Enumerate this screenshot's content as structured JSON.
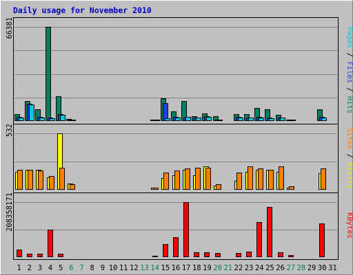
{
  "chart_data": [
    {
      "title": "Daily usage for November 2010",
      "type": "bar",
      "categories": [
        "1",
        "2",
        "3",
        "4",
        "5",
        "6",
        "7",
        "8",
        "9",
        "10",
        "11",
        "12",
        "13",
        "14",
        "15",
        "16",
        "17",
        "18",
        "19",
        "20",
        "21",
        "22",
        "23",
        "24",
        "25",
        "26",
        "27",
        "28",
        "29",
        "30",
        "31"
      ],
      "weekend_days": [
        "6",
        "7",
        "13",
        "14",
        "20",
        "21",
        "27",
        "28"
      ],
      "panels": [
        {
          "id": "hits",
          "max_label": "66381",
          "ylim": [
            0,
            66381
          ],
          "right_label": [
            {
              "text": "Pages",
              "color": "#00c8e0"
            },
            {
              "text": " / ",
              "color": "#000000"
            },
            {
              "text": "Files",
              "color": "#2040e0"
            },
            {
              "text": " / ",
              "color": "#000000"
            },
            {
              "text": "Hits",
              "color": "#008060"
            }
          ],
          "series": [
            {
              "name": "Hits",
              "color": "#008060",
              "values": [
                4700,
                14000,
                8400,
                66381,
                17500,
                1500,
                0,
                0,
                0,
                0,
                0,
                0,
                0,
                350,
                16200,
                7000,
                14000,
                3600,
                5500,
                3500,
                0,
                4800,
                4800,
                9000,
                8000,
                4200,
                1200,
                0,
                0,
                8400,
                0
              ]
            },
            {
              "name": "Files",
              "color": "#2040e0",
              "values": [
                2700,
                12300,
                2700,
                2400,
                4700,
                900,
                0,
                0,
                0,
                0,
                0,
                0,
                0,
                250,
                12800,
                2800,
                2600,
                2600,
                3300,
                1100,
                0,
                2700,
                2300,
                2700,
                2600,
                2600,
                600,
                0,
                0,
                2700,
                0
              ]
            },
            {
              "name": "Pages",
              "color": "#00c8e0",
              "values": [
                2600,
                11600,
                2600,
                2100,
                4200,
                850,
                0,
                0,
                0,
                0,
                0,
                0,
                0,
                220,
                1900,
                2500,
                3000,
                2400,
                3000,
                1000,
                0,
                2300,
                2200,
                2300,
                2100,
                2300,
                500,
                0,
                0,
                2400,
                0
              ]
            }
          ]
        },
        {
          "id": "visits",
          "max_label": "532",
          "ylim": [
            0,
            532
          ],
          "right_label": [
            {
              "text": "Sites",
              "color": "#ff8000"
            },
            {
              "text": " / ",
              "color": "#000000"
            },
            {
              "text": "Visits",
              "color": "#e8e800"
            }
          ],
          "series": [
            {
              "name": "Visits",
              "color": "#ffff00",
              "values": [
                170,
                185,
                190,
                120,
                532,
                60,
                0,
                0,
                0,
                0,
                0,
                0,
                0,
                20,
                110,
                135,
                185,
                135,
                220,
                40,
                0,
                85,
                170,
                185,
                185,
                170,
                20,
                0,
                0,
                155,
                0
              ]
            },
            {
              "name": "Sites",
              "color": "#ff8000",
              "values": [
                190,
                190,
                180,
                130,
                210,
                55,
                0,
                0,
                0,
                0,
                0,
                0,
                0,
                22,
                160,
                180,
                200,
                210,
                210,
                50,
                0,
                160,
                220,
                200,
                190,
                220,
                35,
                0,
                0,
                200,
                0
              ]
            }
          ]
        },
        {
          "id": "kbytes",
          "max_label": "208358171",
          "ylim": [
            0,
            208358171
          ],
          "right_label": [
            {
              "text": "KBytes",
              "color": "#ff0000"
            }
          ],
          "series": [
            {
              "name": "KBytes",
              "color": "#ff0000",
              "values": [
                28000000,
                12000000,
                14000000,
                105000000,
                14000000,
                0,
                0,
                0,
                0,
                0,
                0,
                0,
                0,
                1400000,
                50000000,
                76000000,
                208358171,
                19000000,
                19000000,
                16000000,
                0,
                16000000,
                21000000,
                133000000,
                190000000,
                19000000,
                7000000,
                0,
                0,
                128000000,
                0
              ]
            }
          ]
        }
      ]
    }
  ]
}
